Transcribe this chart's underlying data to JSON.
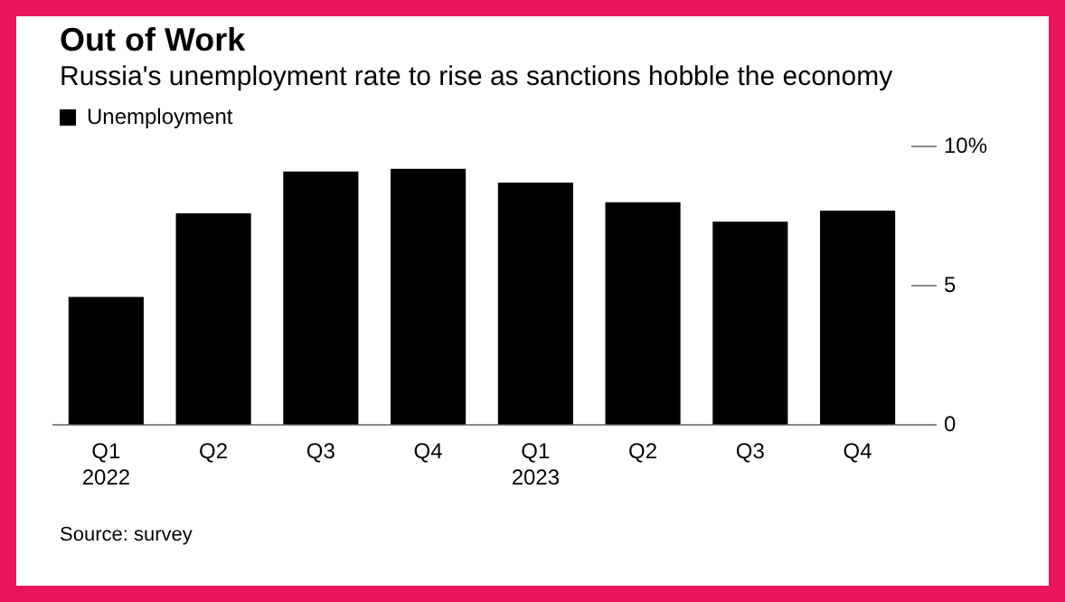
{
  "chart_data": {
    "type": "bar",
    "title": "Out of Work",
    "subtitle": "Russia's unemployment rate to rise as sanctions hobble the economy",
    "categories": [
      "Q1\n2022",
      "Q2",
      "Q3",
      "Q4",
      "Q1\n2023",
      "Q2",
      "Q3",
      "Q4"
    ],
    "series": [
      {
        "name": "Unemployment",
        "color": "#000000",
        "values": [
          4.6,
          7.6,
          9.1,
          9.2,
          8.7,
          8.0,
          7.3,
          7.7
        ]
      }
    ],
    "ylim": [
      0,
      10
    ],
    "yticks": [
      0,
      5,
      {
        "value": 10,
        "label": "10%"
      }
    ],
    "grid": false,
    "legend": "top left",
    "annotations": [
      "Source: survey"
    ]
  }
}
